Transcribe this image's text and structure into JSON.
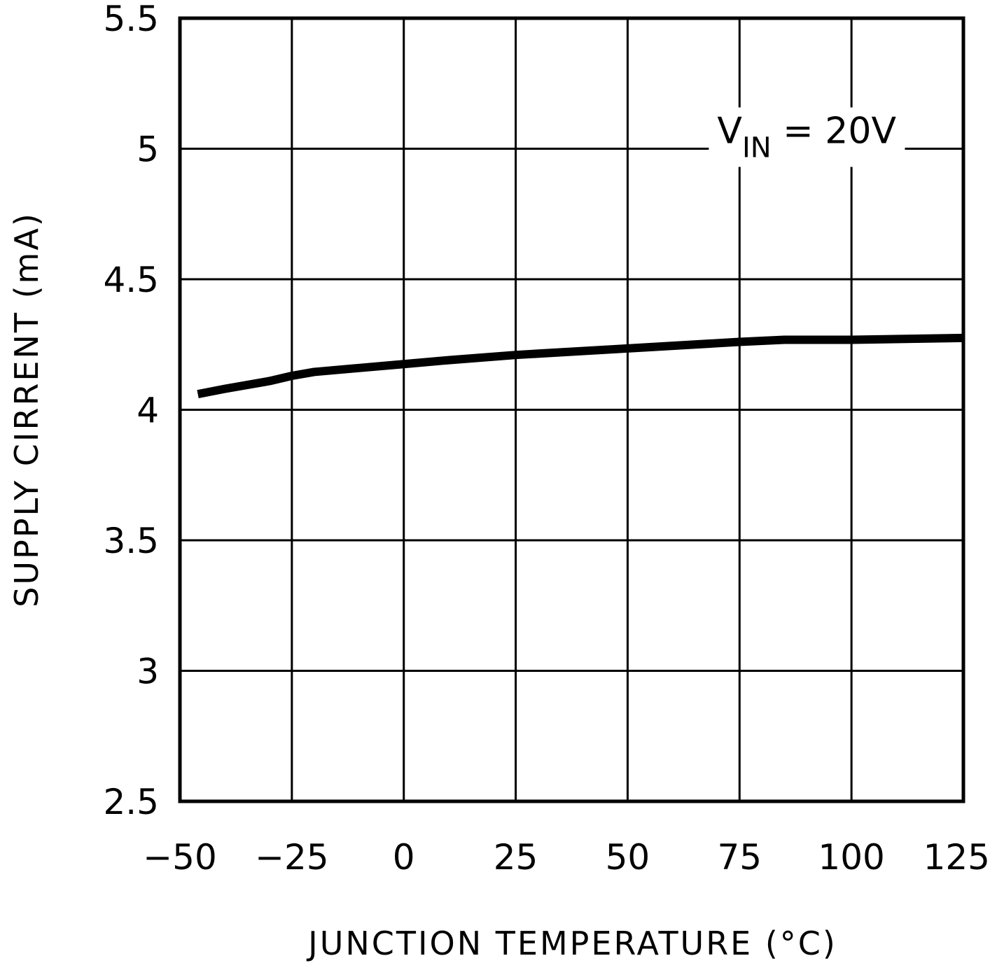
{
  "chart_data": {
    "type": "line",
    "xlabel": "JUNCTION TEMPERATURE (°C)",
    "ylabel": "SUPPLY CIRRENT (mA)",
    "xlim": [
      -50,
      125
    ],
    "ylim": [
      2.5,
      5.5
    ],
    "x_ticks": [
      -50,
      -25,
      0,
      25,
      50,
      75,
      100,
      125
    ],
    "x_tick_labels": [
      "−50",
      "−25",
      "0",
      "25",
      "50",
      "75",
      "100",
      "125"
    ],
    "y_ticks": [
      2.5,
      3,
      3.5,
      4,
      4.5,
      5,
      5.5
    ],
    "y_tick_labels": [
      "2.5",
      "3",
      "3.5",
      "4",
      "4.5",
      "5",
      "5.5"
    ],
    "grid": true,
    "annotation": {
      "main": "V",
      "subscript": "IN",
      "rest": " = 20V",
      "at": [
        90,
        5.0
      ]
    },
    "series": [
      {
        "x": [
          -46,
          -40,
          -30,
          -25,
          -20,
          -10,
          0,
          10,
          25,
          50,
          75,
          85,
          100,
          125
        ],
        "y": [
          4.06,
          4.08,
          4.11,
          4.13,
          4.145,
          4.16,
          4.175,
          4.19,
          4.21,
          4.235,
          4.26,
          4.268,
          4.268,
          4.275
        ]
      }
    ],
    "line_color": "#000000"
  }
}
